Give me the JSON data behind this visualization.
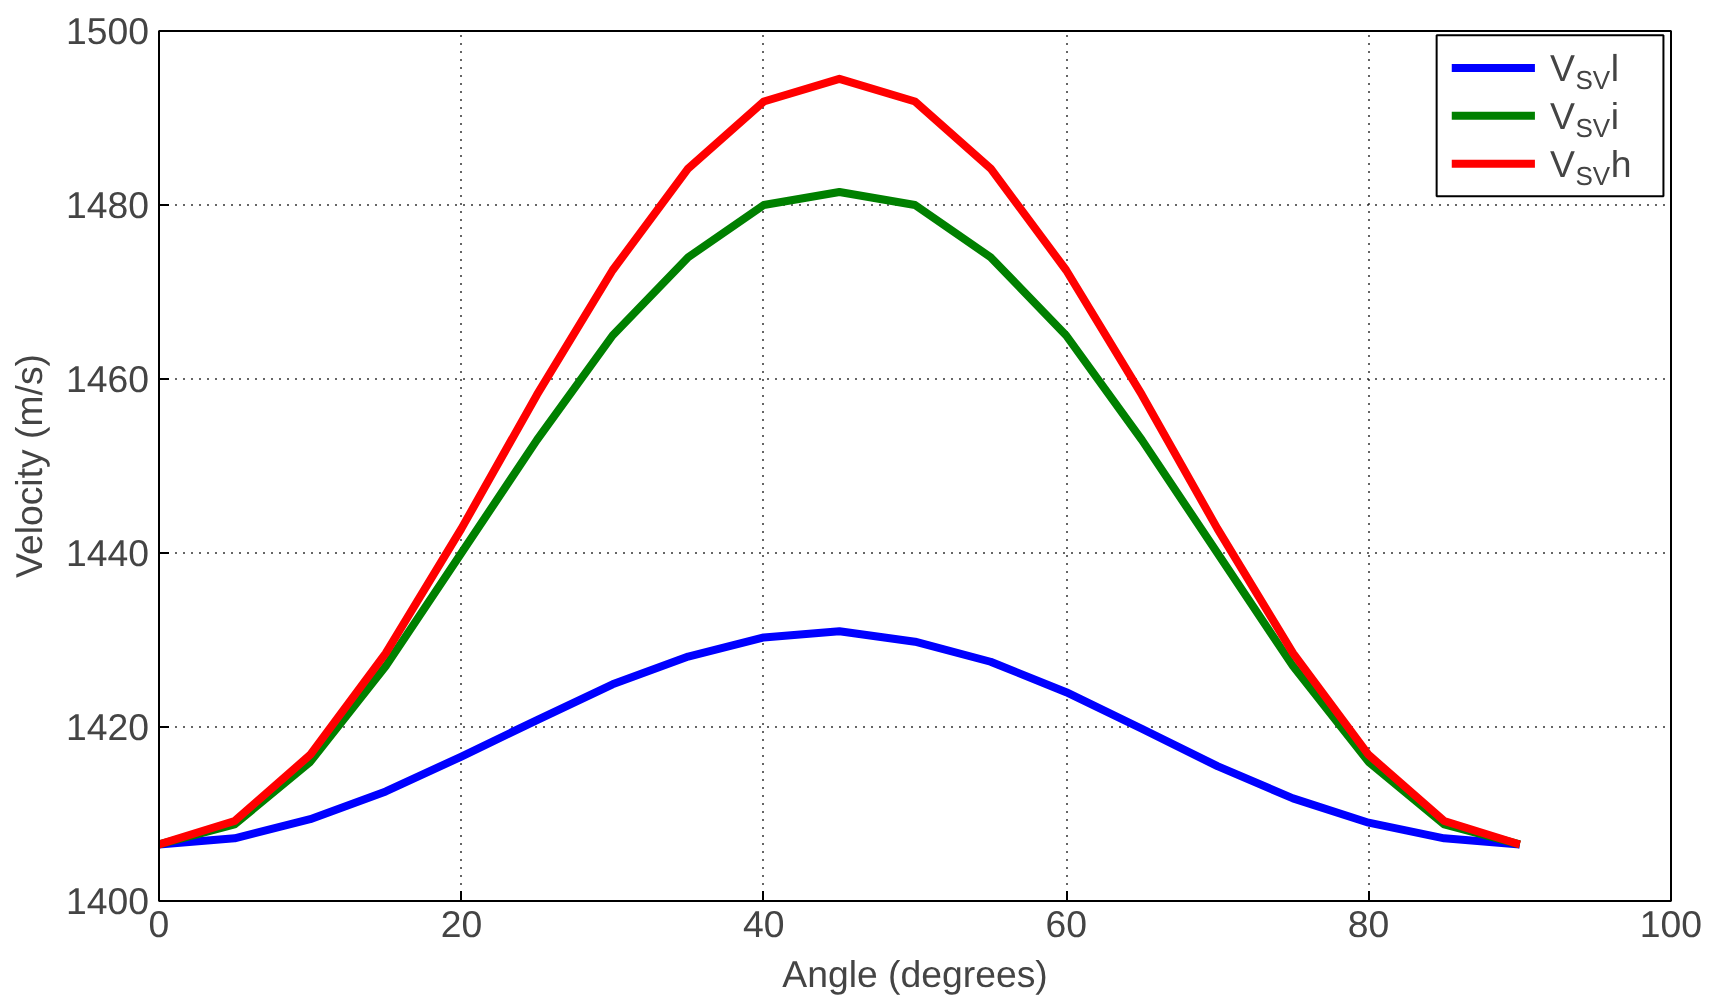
{
  "chart_data": {
    "type": "line",
    "xlabel": "Angle (degrees)",
    "ylabel": "Velocity (m/s)",
    "x": [
      0,
      5,
      10,
      15,
      20,
      25,
      30,
      35,
      40,
      45,
      50,
      55,
      60,
      65,
      70,
      75,
      80,
      85,
      90
    ],
    "series": [
      {
        "name": "V$_{SV}$l",
        "color": "#0000ff",
        "values": [
          1406.5,
          1407.2,
          1409.4,
          1412.6,
          1416.6,
          1420.8,
          1424.9,
          1428.1,
          1430.3,
          1431,
          1429.8,
          1427.5,
          1424,
          1419.8,
          1415.5,
          1411.8,
          1409,
          1407.2,
          1406.5
        ]
      },
      {
        "name": "V$_{SV}$i",
        "color": "#008000",
        "values": [
          1406.5,
          1408.8,
          1416,
          1427,
          1440,
          1453,
          1465,
          1474,
          1480,
          1481.5,
          1480,
          1474,
          1465,
          1453,
          1440,
          1427,
          1416,
          1408.8,
          1406.5
        ]
      },
      {
        "name": "V$_{SV}$h",
        "color": "#ff0000",
        "values": [
          1406.5,
          1409.2,
          1416.8,
          1428.5,
          1442.8,
          1458.2,
          1472.5,
          1484.2,
          1491.9,
          1494.5,
          1491.9,
          1484.2,
          1472.5,
          1458.2,
          1442.8,
          1428.5,
          1416.8,
          1409.2,
          1406.5
        ]
      }
    ],
    "xlim": [
      0,
      100
    ],
    "xticks": [
      0,
      20,
      40,
      60,
      80,
      100
    ],
    "ylim": [
      1400,
      1500
    ],
    "yticks": [
      1400,
      1420,
      1440,
      1460,
      1480,
      1500
    ],
    "grid": true,
    "legend": "top right",
    "line_style": "solid",
    "marker": "none"
  }
}
